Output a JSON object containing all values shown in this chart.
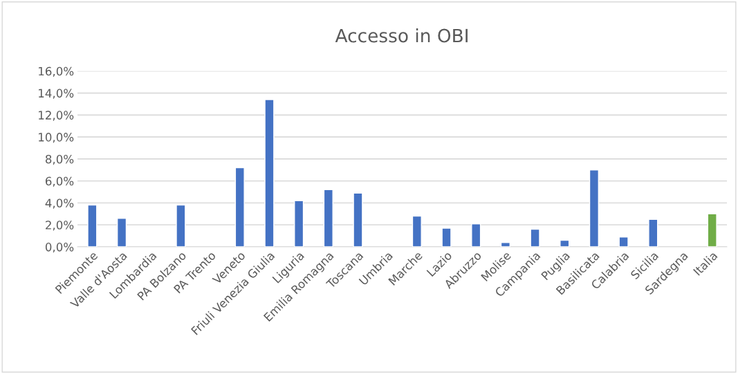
{
  "chart_data": {
    "type": "bar",
    "title": "Accesso in OBI",
    "categories": [
      "Piemonte",
      "Valle d'Aosta",
      "Lombardia",
      "PA Bolzano",
      "PA Trento",
      "Veneto",
      "Friuli Venezia Giulia",
      "Liguria",
      "Emilia Romagna",
      "Toscana",
      "Umbria",
      "Marche",
      "Lazio",
      "Abruzzo",
      "Molise",
      "Campania",
      "Puglia",
      "Basilicata",
      "Calabria",
      "Sicilia",
      "Sardegna",
      "Italia"
    ],
    "values": [
      3.8,
      2.6,
      null,
      3.8,
      null,
      7.2,
      13.4,
      4.2,
      5.2,
      4.9,
      null,
      2.8,
      1.7,
      2.1,
      0.4,
      1.6,
      0.6,
      7.0,
      0.9,
      2.5,
      null,
      3.0
    ],
    "colors": [
      "#4472c4",
      "#4472c4",
      "#4472c4",
      "#4472c4",
      "#4472c4",
      "#4472c4",
      "#4472c4",
      "#4472c4",
      "#4472c4",
      "#4472c4",
      "#4472c4",
      "#4472c4",
      "#4472c4",
      "#4472c4",
      "#4472c4",
      "#4472c4",
      "#4472c4",
      "#4472c4",
      "#4472c4",
      "#4472c4",
      "#4472c4",
      "#70ad47"
    ],
    "ylim": [
      0,
      16
    ],
    "yticks": [
      {
        "value": 0,
        "label": "0,0%"
      },
      {
        "value": 2,
        "label": "2,0%"
      },
      {
        "value": 4,
        "label": "4,0%"
      },
      {
        "value": 6,
        "label": "6,0%"
      },
      {
        "value": 8,
        "label": "8,0%"
      },
      {
        "value": 10,
        "label": "10,0%"
      },
      {
        "value": 12,
        "label": "12,0%"
      },
      {
        "value": 14,
        "label": "14,0%"
      },
      {
        "value": 16,
        "label": "16,0%"
      }
    ],
    "grid": "y",
    "legend": false
  }
}
